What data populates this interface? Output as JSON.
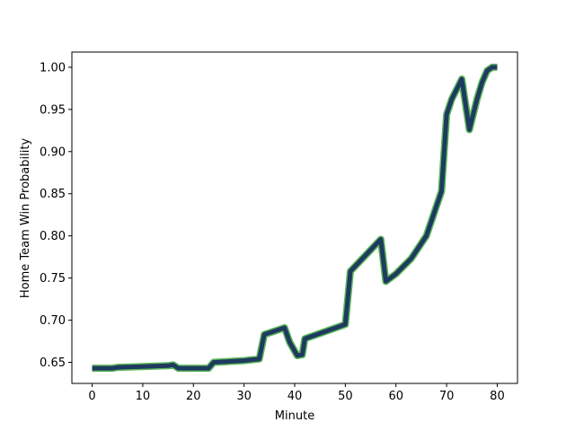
{
  "chart_data": {
    "type": "line",
    "xlabel": "Minute",
    "ylabel": "Home Team Win Probability",
    "xlim": [
      -4,
      84
    ],
    "ylim": [
      0.625,
      1.018
    ],
    "xticks": [
      0,
      10,
      20,
      30,
      40,
      50,
      60,
      70,
      80
    ],
    "xtick_labels": [
      "0",
      "10",
      "20",
      "30",
      "40",
      "50",
      "60",
      "70",
      "80"
    ],
    "yticks": [
      0.65,
      0.7,
      0.75,
      0.8,
      0.85,
      0.9,
      0.95,
      1.0
    ],
    "ytick_labels": [
      "0.65",
      "0.70",
      "0.75",
      "0.80",
      "0.85",
      "0.90",
      "0.95",
      "1.00"
    ],
    "grid": false,
    "line_color": "#1f3a5f",
    "line_edge_color": "#5cb85c",
    "series": [
      {
        "x": [
          0,
          4,
          5,
          10,
          15,
          16,
          17,
          20,
          23,
          24,
          30,
          33,
          34,
          38,
          39,
          40.5,
          41.5,
          42,
          50,
          51,
          57,
          58,
          60,
          63,
          66,
          69,
          70,
          71,
          73,
          74.5,
          76,
          77,
          78,
          79,
          80
        ],
        "y": [
          0.643,
          0.643,
          0.644,
          0.645,
          0.646,
          0.647,
          0.643,
          0.643,
          0.643,
          0.65,
          0.652,
          0.654,
          0.683,
          0.691,
          0.674,
          0.658,
          0.659,
          0.678,
          0.695,
          0.758,
          0.796,
          0.746,
          0.755,
          0.773,
          0.8,
          0.853,
          0.944,
          0.962,
          0.986,
          0.926,
          0.962,
          0.982,
          0.996,
          1.0,
          1.0
        ]
      }
    ]
  }
}
